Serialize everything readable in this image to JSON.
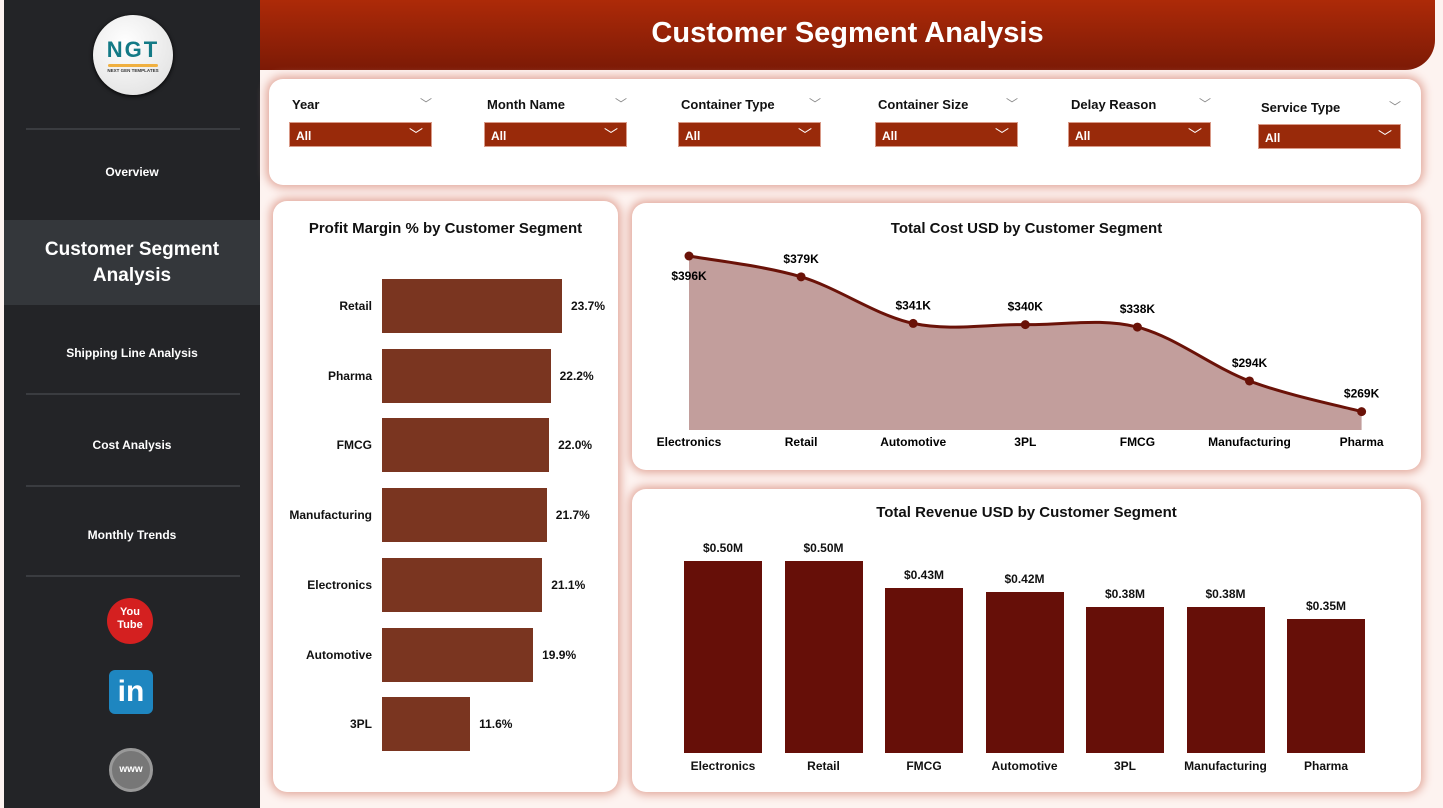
{
  "header": {
    "title": "Customer Segment Analysis"
  },
  "logo": {
    "text": "NGT",
    "subtext": "NEXT GEN TEMPLATES"
  },
  "sidebar": {
    "items": [
      {
        "label": "Overview",
        "active": false
      },
      {
        "label": "Customer Segment Analysis",
        "active": true
      },
      {
        "label": "Shipping Line Analysis",
        "active": false
      },
      {
        "label": "Cost Analysis",
        "active": false
      },
      {
        "label": "Monthly Trends",
        "active": false
      }
    ],
    "social": [
      {
        "icon": "youtube-icon",
        "text": "You Tube"
      },
      {
        "icon": "linkedin-icon",
        "text": "in"
      },
      {
        "icon": "globe-icon",
        "text": "www"
      }
    ]
  },
  "filters": [
    {
      "label": "Year",
      "value": "All"
    },
    {
      "label": "Month Name",
      "value": "All"
    },
    {
      "label": "Container Type",
      "value": "All"
    },
    {
      "label": "Container Size",
      "value": "All"
    },
    {
      "label": "Delay Reason",
      "value": "All"
    },
    {
      "label": "Service Type",
      "value": "All"
    }
  ],
  "colors": {
    "accent": "#992a0a",
    "profit_bar": "#7a3520",
    "cost_line": "#6a1208",
    "cost_area": "#c29e9c",
    "revenue_bar": "#660f08"
  },
  "chart_data": [
    {
      "type": "bar",
      "orientation": "horizontal",
      "title": "Profit Margin % by Customer Segment",
      "categories": [
        "Retail",
        "Pharma",
        "FMCG",
        "Manufacturing",
        "Electronics",
        "Automotive",
        "3PL"
      ],
      "values": [
        23.7,
        22.2,
        22.0,
        21.7,
        21.1,
        19.9,
        11.6
      ],
      "labels": [
        "23.7%",
        "22.2%",
        "22.0%",
        "21.7%",
        "21.1%",
        "19.9%",
        "11.6%"
      ],
      "xlim": [
        0,
        23.7
      ],
      "grid": false
    },
    {
      "type": "area",
      "title": "Total Cost USD by Customer Segment",
      "categories": [
        "Electronics",
        "Retail",
        "Automotive",
        "3PL",
        "FMCG",
        "Manufacturing",
        "Pharma"
      ],
      "values": [
        396,
        379,
        341,
        340,
        338,
        294,
        269
      ],
      "labels": [
        "$396K",
        "$379K",
        "$341K",
        "$340K",
        "$338K",
        "$294K",
        "$269K"
      ],
      "unit": "K USD",
      "ylim": [
        254,
        396
      ],
      "grid": false
    },
    {
      "type": "bar",
      "title": "Total Revenue USD by Customer Segment",
      "categories": [
        "Electronics",
        "Retail",
        "FMCG",
        "Automotive",
        "3PL",
        "Manufacturing",
        "Pharma"
      ],
      "values": [
        0.5,
        0.5,
        0.43,
        0.42,
        0.38,
        0.38,
        0.35
      ],
      "labels": [
        "$0.50M",
        "$0.50M",
        "$0.43M",
        "$0.42M",
        "$0.38M",
        "$0.38M",
        "$0.35M"
      ],
      "unit": "M USD",
      "ylim": [
        0,
        0.5
      ],
      "grid": false
    }
  ]
}
